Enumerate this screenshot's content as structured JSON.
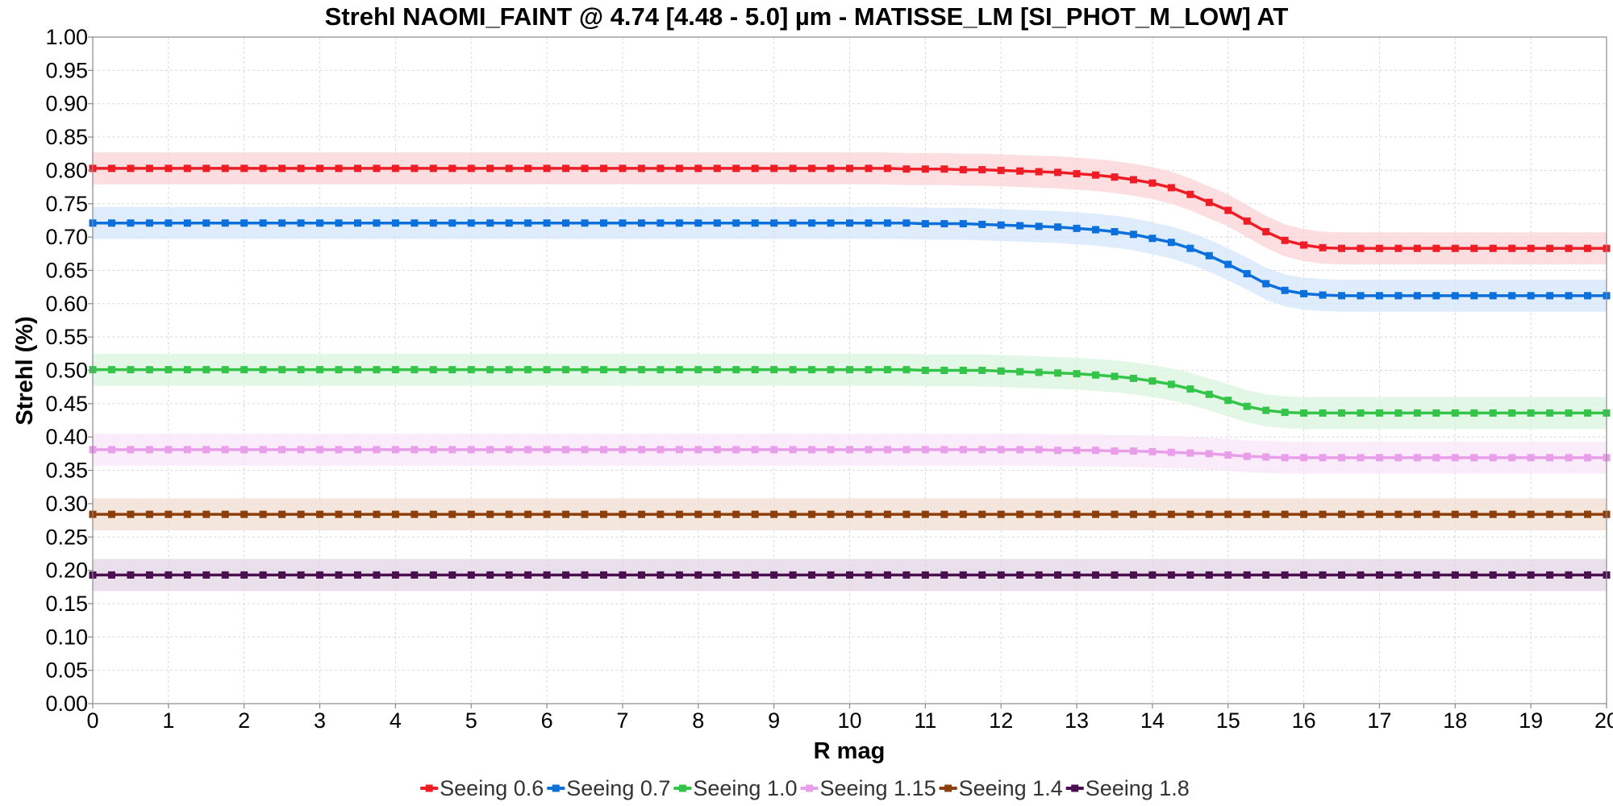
{
  "chart_data": {
    "type": "line",
    "title": "Strehl NAOMI_FAINT @ 4.74 [4.48 - 5.0] µm - MATISSE_LM [SI_PHOT_M_LOW] AT",
    "xlabel": "R mag",
    "ylabel": "Strehl (%)",
    "xlim": [
      0,
      20
    ],
    "ylim": [
      0,
      1
    ],
    "xticks": [
      "0",
      "1",
      "2",
      "3",
      "4",
      "5",
      "6",
      "7",
      "8",
      "9",
      "10",
      "11",
      "12",
      "13",
      "14",
      "15",
      "16",
      "17",
      "18",
      "19",
      "20"
    ],
    "yticks": [
      "0.00",
      "0.05",
      "0.10",
      "0.15",
      "0.20",
      "0.25",
      "0.30",
      "0.35",
      "0.40",
      "0.45",
      "0.50",
      "0.55",
      "0.60",
      "0.65",
      "0.70",
      "0.75",
      "0.80",
      "0.85",
      "0.90",
      "0.95",
      "1.00"
    ],
    "grid": true,
    "legend_position": "bottom",
    "x": [
      0.0,
      0.25,
      0.5,
      0.75,
      1.0,
      1.25,
      1.5,
      1.75,
      2.0,
      2.25,
      2.5,
      2.75,
      3.0,
      3.25,
      3.5,
      3.75,
      4.0,
      4.25,
      4.5,
      4.75,
      5.0,
      5.25,
      5.5,
      5.75,
      6.0,
      6.25,
      6.5,
      6.75,
      7.0,
      7.25,
      7.5,
      7.75,
      8.0,
      8.25,
      8.5,
      8.75,
      9.0,
      9.25,
      9.5,
      9.75,
      10.0,
      10.25,
      10.5,
      10.75,
      11.0,
      11.25,
      11.5,
      11.75,
      12.0,
      12.25,
      12.5,
      12.75,
      13.0,
      13.25,
      13.5,
      13.75,
      14.0,
      14.25,
      14.5,
      14.75,
      15.0,
      15.25,
      15.5,
      15.75,
      16.0,
      16.25,
      16.5,
      16.75,
      17.0,
      17.25,
      17.5,
      17.75,
      18.0,
      18.25,
      18.5,
      18.75,
      19.0,
      19.25,
      19.5,
      19.75,
      20.0
    ],
    "series": [
      {
        "name": "Seeing 0.6",
        "color": "#ee1c25",
        "band_color": "#fbd3d6",
        "values": [
          0.803,
          0.803,
          0.803,
          0.803,
          0.803,
          0.803,
          0.803,
          0.803,
          0.803,
          0.803,
          0.803,
          0.803,
          0.803,
          0.803,
          0.803,
          0.803,
          0.803,
          0.803,
          0.803,
          0.803,
          0.803,
          0.803,
          0.803,
          0.803,
          0.803,
          0.803,
          0.803,
          0.803,
          0.803,
          0.803,
          0.803,
          0.803,
          0.803,
          0.803,
          0.803,
          0.803,
          0.803,
          0.803,
          0.803,
          0.803,
          0.803,
          0.803,
          0.803,
          0.802,
          0.802,
          0.802,
          0.801,
          0.801,
          0.8,
          0.799,
          0.798,
          0.797,
          0.795,
          0.793,
          0.79,
          0.786,
          0.781,
          0.774,
          0.764,
          0.752,
          0.74,
          0.724,
          0.708,
          0.695,
          0.688,
          0.684,
          0.683,
          0.683,
          0.683,
          0.683,
          0.683,
          0.683,
          0.683,
          0.683,
          0.683,
          0.683,
          0.683,
          0.683,
          0.683,
          0.683,
          0.683
        ]
      },
      {
        "name": "Seeing 0.7",
        "color": "#0b6fdc",
        "band_color": "#d4e6f9",
        "values": [
          0.721,
          0.721,
          0.721,
          0.721,
          0.721,
          0.721,
          0.721,
          0.721,
          0.721,
          0.721,
          0.721,
          0.721,
          0.721,
          0.721,
          0.721,
          0.721,
          0.721,
          0.721,
          0.721,
          0.721,
          0.721,
          0.721,
          0.721,
          0.721,
          0.721,
          0.721,
          0.721,
          0.721,
          0.721,
          0.721,
          0.721,
          0.721,
          0.721,
          0.721,
          0.721,
          0.721,
          0.721,
          0.721,
          0.721,
          0.721,
          0.721,
          0.721,
          0.721,
          0.721,
          0.72,
          0.72,
          0.72,
          0.719,
          0.718,
          0.717,
          0.716,
          0.715,
          0.713,
          0.711,
          0.708,
          0.704,
          0.698,
          0.692,
          0.683,
          0.672,
          0.659,
          0.645,
          0.63,
          0.62,
          0.615,
          0.613,
          0.612,
          0.612,
          0.612,
          0.612,
          0.612,
          0.612,
          0.612,
          0.612,
          0.612,
          0.612,
          0.612,
          0.612,
          0.612,
          0.612,
          0.612
        ]
      },
      {
        "name": "Seeing 1.0",
        "color": "#34c44a",
        "band_color": "#d9f4dd",
        "values": [
          0.501,
          0.501,
          0.501,
          0.501,
          0.501,
          0.501,
          0.501,
          0.501,
          0.501,
          0.501,
          0.501,
          0.501,
          0.501,
          0.501,
          0.501,
          0.501,
          0.501,
          0.501,
          0.501,
          0.501,
          0.501,
          0.501,
          0.501,
          0.501,
          0.501,
          0.501,
          0.501,
          0.501,
          0.501,
          0.501,
          0.501,
          0.501,
          0.501,
          0.501,
          0.501,
          0.501,
          0.501,
          0.501,
          0.501,
          0.501,
          0.501,
          0.501,
          0.501,
          0.501,
          0.5,
          0.5,
          0.5,
          0.5,
          0.499,
          0.498,
          0.497,
          0.496,
          0.495,
          0.493,
          0.491,
          0.488,
          0.484,
          0.479,
          0.472,
          0.464,
          0.455,
          0.446,
          0.44,
          0.437,
          0.436,
          0.436,
          0.436,
          0.436,
          0.436,
          0.436,
          0.436,
          0.436,
          0.436,
          0.436,
          0.436,
          0.436,
          0.436,
          0.436,
          0.436,
          0.436,
          0.436
        ]
      },
      {
        "name": "Seeing 1.15",
        "color": "#e99ee9",
        "band_color": "#f9e5f9",
        "values": [
          0.381,
          0.381,
          0.381,
          0.381,
          0.381,
          0.381,
          0.381,
          0.381,
          0.381,
          0.381,
          0.381,
          0.381,
          0.381,
          0.381,
          0.381,
          0.381,
          0.381,
          0.381,
          0.381,
          0.381,
          0.381,
          0.381,
          0.381,
          0.381,
          0.381,
          0.381,
          0.381,
          0.381,
          0.381,
          0.381,
          0.381,
          0.381,
          0.381,
          0.381,
          0.381,
          0.381,
          0.381,
          0.381,
          0.381,
          0.381,
          0.381,
          0.381,
          0.381,
          0.381,
          0.381,
          0.381,
          0.381,
          0.381,
          0.381,
          0.381,
          0.381,
          0.38,
          0.38,
          0.38,
          0.379,
          0.379,
          0.378,
          0.377,
          0.376,
          0.375,
          0.373,
          0.371,
          0.37,
          0.369,
          0.369,
          0.369,
          0.369,
          0.369,
          0.369,
          0.369,
          0.369,
          0.369,
          0.369,
          0.369,
          0.369,
          0.369,
          0.369,
          0.369,
          0.369,
          0.369,
          0.369
        ]
      },
      {
        "name": "Seeing 1.4",
        "color": "#8c3f0a",
        "band_color": "#f1ded2",
        "values": [
          0.284,
          0.284,
          0.284,
          0.284,
          0.284,
          0.284,
          0.284,
          0.284,
          0.284,
          0.284,
          0.284,
          0.284,
          0.284,
          0.284,
          0.284,
          0.284,
          0.284,
          0.284,
          0.284,
          0.284,
          0.284,
          0.284,
          0.284,
          0.284,
          0.284,
          0.284,
          0.284,
          0.284,
          0.284,
          0.284,
          0.284,
          0.284,
          0.284,
          0.284,
          0.284,
          0.284,
          0.284,
          0.284,
          0.284,
          0.284,
          0.284,
          0.284,
          0.284,
          0.284,
          0.284,
          0.284,
          0.284,
          0.284,
          0.284,
          0.284,
          0.284,
          0.284,
          0.284,
          0.284,
          0.284,
          0.284,
          0.284,
          0.284,
          0.284,
          0.284,
          0.284,
          0.284,
          0.284,
          0.284,
          0.284,
          0.284,
          0.284,
          0.284,
          0.284,
          0.284,
          0.284,
          0.284,
          0.284,
          0.284,
          0.284,
          0.284,
          0.284,
          0.284,
          0.284,
          0.284,
          0.284
        ]
      },
      {
        "name": "Seeing 1.8",
        "color": "#4a0f4f",
        "band_color": "#e3d6e5",
        "values": [
          0.193,
          0.193,
          0.193,
          0.193,
          0.193,
          0.193,
          0.193,
          0.193,
          0.193,
          0.193,
          0.193,
          0.193,
          0.193,
          0.193,
          0.193,
          0.193,
          0.193,
          0.193,
          0.193,
          0.193,
          0.193,
          0.193,
          0.193,
          0.193,
          0.193,
          0.193,
          0.193,
          0.193,
          0.193,
          0.193,
          0.193,
          0.193,
          0.193,
          0.193,
          0.193,
          0.193,
          0.193,
          0.193,
          0.193,
          0.193,
          0.193,
          0.193,
          0.193,
          0.193,
          0.193,
          0.193,
          0.193,
          0.193,
          0.193,
          0.193,
          0.193,
          0.193,
          0.193,
          0.193,
          0.193,
          0.193,
          0.193,
          0.193,
          0.193,
          0.193,
          0.193,
          0.193,
          0.193,
          0.193,
          0.193,
          0.193,
          0.193,
          0.193,
          0.193,
          0.193,
          0.193,
          0.193,
          0.193,
          0.193,
          0.193,
          0.193,
          0.193,
          0.193,
          0.193,
          0.193,
          0.193
        ]
      }
    ]
  }
}
